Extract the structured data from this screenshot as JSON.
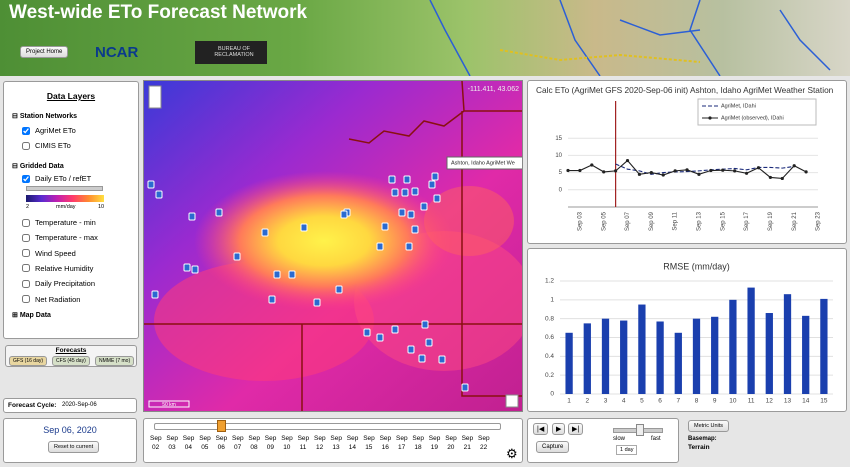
{
  "header": {
    "title": "West-wide ETo Forecast Network",
    "project_home": "Project Home",
    "ncar_logo": "NCAR",
    "reclamation_logo": "BUREAU OF RECLAMATION"
  },
  "data_layers": {
    "title": "Data Layers",
    "station_networks": {
      "heading": "Station Networks",
      "items": [
        {
          "label": "AgriMet ETo",
          "checked": true
        },
        {
          "label": "CIMIS ETo",
          "checked": false
        }
      ]
    },
    "gridded_data": {
      "heading": "Gridded Data",
      "items": [
        {
          "label": "Daily ETo / refET",
          "checked": true
        },
        {
          "label": "Temperature - min",
          "checked": false
        },
        {
          "label": "Temperature - max",
          "checked": false
        },
        {
          "label": "Wind Speed",
          "checked": false
        },
        {
          "label": "Relative Humidity",
          "checked": false
        },
        {
          "label": "Daily Precipitation",
          "checked": false
        },
        {
          "label": "Net Radiation",
          "checked": false
        }
      ]
    },
    "colorbar": {
      "min": 2,
      "unit": "mm/day",
      "max": 10
    },
    "map_data": "Map Data"
  },
  "forecasts": {
    "title": "Forecasts",
    "buttons": [
      "GFS (16 day)",
      "CFS (45 day)",
      "NMME (7 mo)"
    ]
  },
  "forecast_cycle": {
    "label": "Forecast Cycle:",
    "value": "2020-Sep-06"
  },
  "date_panel": {
    "date": "Sep 06, 2020",
    "reset": "Reset to current"
  },
  "map": {
    "coordinates": "-111.411, 43.062",
    "tooltip": "Ashton, Idaho AgriMet We",
    "scale": "50 km"
  },
  "timeline": {
    "month": "Sep",
    "days": [
      "02",
      "03",
      "04",
      "05",
      "06",
      "07",
      "08",
      "09",
      "10",
      "11",
      "12",
      "13",
      "14",
      "15",
      "16",
      "17",
      "18",
      "19",
      "20",
      "21",
      "22"
    ]
  },
  "controls": {
    "capture": "Capture",
    "slow": "slow",
    "fast": "fast",
    "step": "1 day",
    "metric": "Metric Units",
    "basemap_label": "Basemap:",
    "basemap": "Terrain"
  },
  "chart_data": [
    {
      "type": "line",
      "title": "Calc ETo (AgriMet GFS 2020-Sep-06 init) Ashton, Idaho AgriMet Weather Station",
      "categories": [
        null,
        "Sep 03",
        null,
        "Sep 05",
        null,
        "Sep 07",
        null,
        "Sep 09",
        null,
        "Sep 11",
        null,
        "Sep 13",
        null,
        "Sep 15",
        null,
        "Sep 17",
        null,
        "Sep 19",
        null,
        "Sep 21",
        null,
        "Sep 23"
      ],
      "series": [
        {
          "name": "AgriMet, IDahi",
          "color": "#1a2a7a",
          "dashed": true,
          "markers": false,
          "values": [
            null,
            null,
            null,
            null,
            7.5,
            6.0,
            5.5,
            4.5,
            5.0,
            5.2,
            5.3,
            5.5,
            5.8,
            6.0,
            6.2,
            5.8,
            6.5,
            6.5,
            6.3,
            6.8,
            null,
            null
          ]
        },
        {
          "name": "AgriMet (observed), IDahi",
          "color": "#222222",
          "dashed": false,
          "markers": true,
          "values": [
            5.6,
            5.6,
            7.2,
            5.2,
            5.5,
            8.5,
            4.5,
            5.0,
            4.3,
            5.5,
            5.8,
            4.5,
            5.6,
            5.7,
            5.5,
            4.8,
            6.4,
            3.6,
            3.3,
            7.0,
            5.2,
            null
          ]
        }
      ],
      "ylim": [
        -5,
        20
      ],
      "yticks": [
        0,
        5,
        10,
        15
      ],
      "grid": true,
      "legend": "upper right"
    },
    {
      "type": "bar",
      "title": "RMSE (mm/day)",
      "categories": [
        "1",
        "2",
        "3",
        "4",
        "5",
        "6",
        "7",
        "8",
        "9",
        "10",
        "11",
        "12",
        "13",
        "14",
        "15"
      ],
      "values": [
        0.65,
        0.75,
        0.8,
        0.78,
        0.95,
        0.77,
        0.65,
        0.8,
        0.82,
        1.0,
        1.13,
        0.86,
        1.06,
        0.83,
        1.01
      ],
      "color": "#1a3fae",
      "ylim": [
        0,
        1.2
      ],
      "yticks": [
        0,
        0.2,
        0.4,
        0.6,
        0.8,
        1,
        1.2
      ],
      "grid": true
    }
  ]
}
